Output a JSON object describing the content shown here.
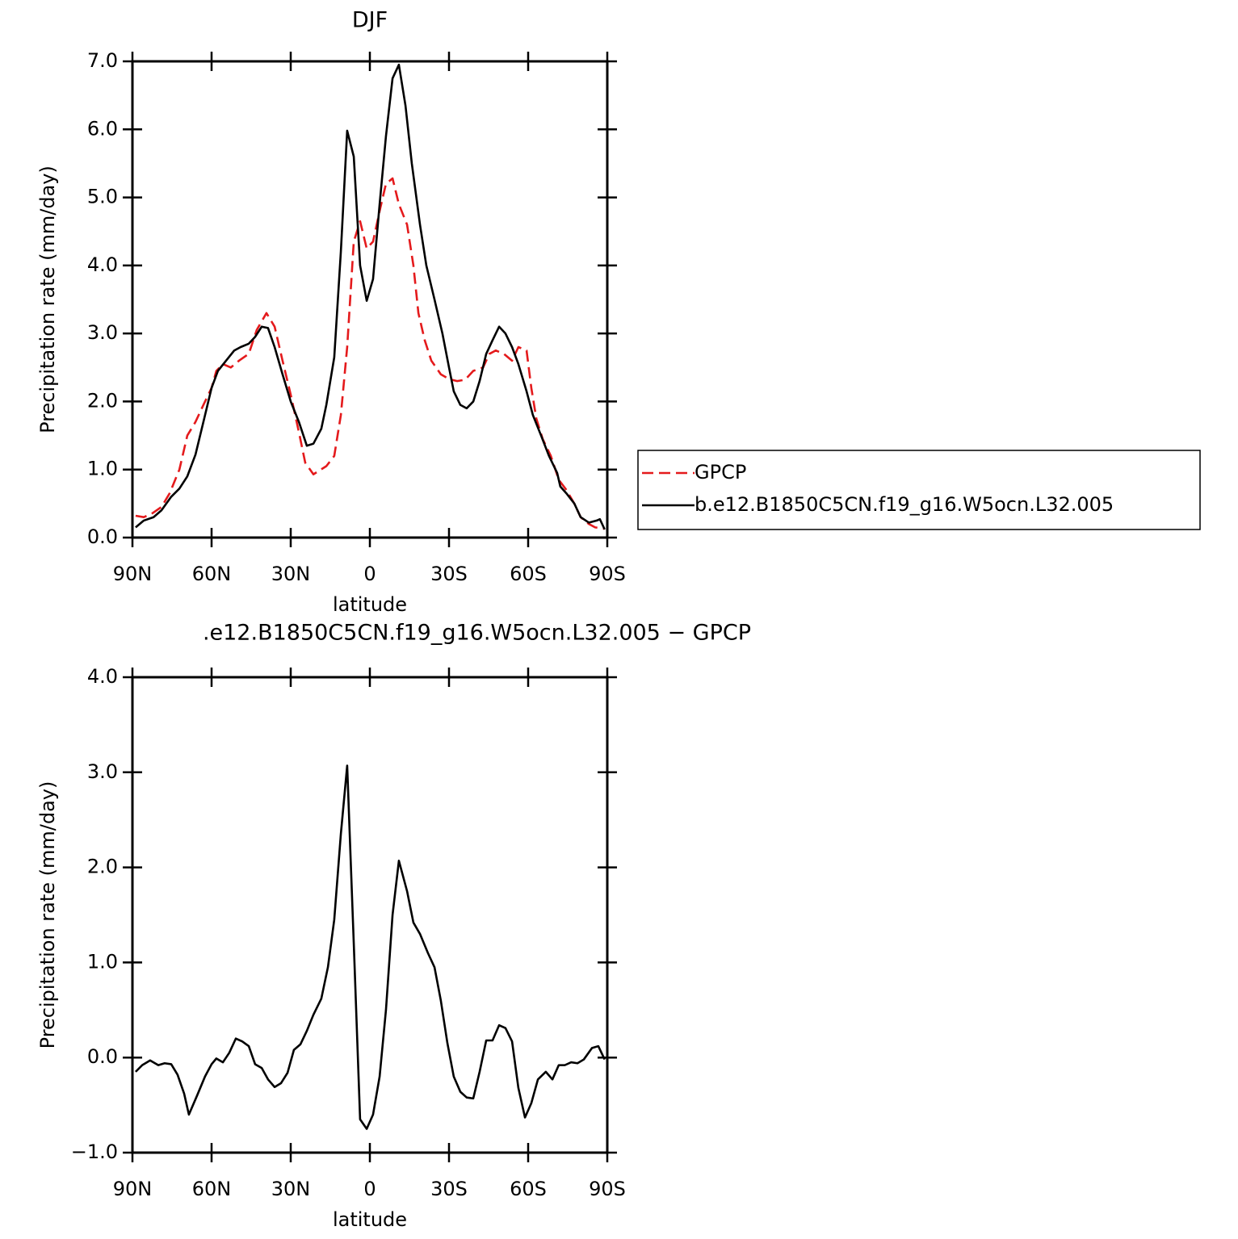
{
  "chart_data": [
    {
      "type": "line",
      "title": "DJF",
      "xlabel": "latitude",
      "ylabel": "Precipitation rate (mm/day)",
      "xlim": [
        90,
        -90
      ],
      "xticks": [
        {
          "value": 90,
          "label": "90N"
        },
        {
          "value": 60,
          "label": "60N"
        },
        {
          "value": 30,
          "label": "30N"
        },
        0,
        {
          "value": -30,
          "label": "30S"
        },
        {
          "value": -60,
          "label": "60S"
        },
        {
          "value": -90,
          "label": "90S"
        }
      ],
      "ylim": [
        0,
        7
      ],
      "yticks": [
        {
          "value": 0,
          "label": "0.0"
        },
        {
          "value": 1,
          "label": "1.0"
        },
        {
          "value": 2,
          "label": "2.0"
        },
        {
          "value": 3,
          "label": "3.0"
        },
        {
          "value": 4,
          "label": "4.0"
        },
        {
          "value": 5,
          "label": "5.0"
        },
        {
          "value": 6,
          "label": "6.0"
        },
        {
          "value": 7,
          "label": "7.0"
        }
      ],
      "legend": "right",
      "series": [
        {
          "name": "GPCP",
          "color": "#e41a1c",
          "dashed": true,
          "x": [
            88.8,
            85.7,
            82.7,
            79.0,
            75.9,
            72.2,
            69.2,
            66.1,
            63.1,
            60.0,
            58.2,
            55.7,
            52.7,
            49.6,
            45.9,
            42.9,
            39.2,
            36.1,
            33.1,
            30.0,
            26.9,
            24.5,
            21.4,
            16.5,
            13.5,
            11.0,
            8.6,
            6.1,
            3.7,
            1.2,
            -1.2,
            -3.7,
            -6.1,
            -8.6,
            -11.0,
            -14.1,
            -16.5,
            -18.4,
            -20.8,
            -23.3,
            -26.9,
            -30.0,
            -33.1,
            -36.1,
            -39.2,
            -42.9,
            -45.3,
            -47.7,
            -50.8,
            -53.9,
            -56.3,
            -59.4,
            -61.2,
            -63.1,
            -65.5,
            -68.6,
            -71.6,
            -74.5,
            -77.5,
            -79.9,
            -83.0,
            -85.4,
            -89.0
          ],
          "values": [
            0.32,
            0.3,
            0.35,
            0.45,
            0.65,
            1.0,
            1.5,
            1.7,
            1.95,
            2.2,
            2.45,
            2.55,
            2.5,
            2.6,
            2.7,
            3.05,
            3.3,
            3.1,
            2.6,
            2.1,
            1.55,
            1.1,
            0.93,
            1.05,
            1.2,
            1.8,
            2.8,
            4.35,
            4.65,
            4.25,
            4.35,
            4.8,
            5.2,
            5.28,
            4.9,
            4.6,
            4.0,
            3.3,
            2.9,
            2.6,
            2.4,
            2.33,
            2.3,
            2.32,
            2.45,
            2.5,
            2.7,
            2.75,
            2.7,
            2.6,
            2.8,
            2.75,
            2.2,
            1.75,
            1.45,
            1.2,
            0.85,
            0.7,
            0.5,
            0.3,
            0.2,
            0.15,
            0.13
          ]
        },
        {
          "name": "b.e12.B1850C5CN.f19_g16.W5ocn.L32.005",
          "color": "#000000",
          "x": [
            88.8,
            85.7,
            82.0,
            79.0,
            75.3,
            72.2,
            69.2,
            66.1,
            63.1,
            60.0,
            57.6,
            54.5,
            51.4,
            49.0,
            45.9,
            43.5,
            41.0,
            38.6,
            36.1,
            33.1,
            30.0,
            26.9,
            23.9,
            21.4,
            18.4,
            16.5,
            13.5,
            11.0,
            8.6,
            6.1,
            3.7,
            1.2,
            -1.2,
            -3.7,
            -6.1,
            -8.6,
            -11.0,
            -13.5,
            -15.9,
            -19.0,
            -21.4,
            -24.5,
            -27.5,
            -30.0,
            -31.8,
            -34.3,
            -36.7,
            -39.2,
            -41.6,
            -44.1,
            -46.5,
            -49.0,
            -51.4,
            -53.9,
            -56.3,
            -59.4,
            -61.8,
            -64.9,
            -67.9,
            -71.0,
            -72.2,
            -74.5,
            -77.5,
            -79.9,
            -83.0,
            -86.0,
            -87.2,
            -89.0
          ],
          "values": [
            0.15,
            0.25,
            0.3,
            0.4,
            0.6,
            0.72,
            0.9,
            1.22,
            1.7,
            2.2,
            2.45,
            2.6,
            2.75,
            2.8,
            2.85,
            2.95,
            3.1,
            3.08,
            2.8,
            2.4,
            2.0,
            1.7,
            1.35,
            1.38,
            1.6,
            1.95,
            2.65,
            4.2,
            5.98,
            5.6,
            4.0,
            3.48,
            3.8,
            4.9,
            5.9,
            6.75,
            6.95,
            6.35,
            5.5,
            4.6,
            4.0,
            3.5,
            3.0,
            2.5,
            2.15,
            1.95,
            1.9,
            2.0,
            2.3,
            2.7,
            2.9,
            3.1,
            3.0,
            2.8,
            2.55,
            2.15,
            1.8,
            1.5,
            1.2,
            0.95,
            0.75,
            0.65,
            0.5,
            0.3,
            0.22,
            0.25,
            0.27,
            0.12
          ]
        }
      ]
    },
    {
      "type": "line",
      "title": ".e12.B1850C5CN.f19_g16.W5ocn.L32.005 − GPCP",
      "xlabel": "latitude",
      "ylabel": "Precipitation rate (mm/day)",
      "xlim": [
        90,
        -90
      ],
      "xticks": [
        {
          "value": 90,
          "label": "90N"
        },
        {
          "value": 60,
          "label": "60N"
        },
        {
          "value": 30,
          "label": "30N"
        },
        0,
        {
          "value": -30,
          "label": "30S"
        },
        {
          "value": -60,
          "label": "60S"
        },
        {
          "value": -90,
          "label": "90S"
        }
      ],
      "ylim": [
        -1,
        4
      ],
      "yticks": [
        {
          "value": -1,
          "label": "−1.0"
        },
        {
          "value": 0,
          "label": "0.0"
        },
        {
          "value": 1,
          "label": "1.0"
        },
        {
          "value": 2,
          "label": "2.0"
        },
        {
          "value": 3,
          "label": "3.0"
        },
        {
          "value": 4,
          "label": "4.0"
        }
      ],
      "series": [
        {
          "color": "#000000",
          "x": [
            88.8,
            86.3,
            83.3,
            80.2,
            77.8,
            75.3,
            72.9,
            70.4,
            68.6,
            65.5,
            62.5,
            60.0,
            58.2,
            55.7,
            53.3,
            50.8,
            48.4,
            45.9,
            43.5,
            41.0,
            38.6,
            36.1,
            33.7,
            31.2,
            28.8,
            26.3,
            23.9,
            21.4,
            18.4,
            15.9,
            13.5,
            11.0,
            8.6,
            6.1,
            3.7,
            1.2,
            -1.2,
            -3.7,
            -6.1,
            -8.6,
            -11.0,
            -14.1,
            -16.5,
            -19.0,
            -22.0,
            -24.5,
            -26.9,
            -29.4,
            -31.8,
            -34.3,
            -36.7,
            -39.2,
            -41.6,
            -44.1,
            -46.5,
            -49.0,
            -51.4,
            -53.9,
            -56.3,
            -58.8,
            -61.2,
            -63.7,
            -66.7,
            -69.2,
            -71.6,
            -73.9,
            -76.3,
            -78.7,
            -81.1,
            -84.2,
            -86.6,
            -89.0
          ],
          "values": [
            -0.15,
            -0.08,
            -0.03,
            -0.08,
            -0.06,
            -0.07,
            -0.18,
            -0.38,
            -0.6,
            -0.4,
            -0.2,
            -0.07,
            -0.01,
            -0.05,
            0.05,
            0.2,
            0.17,
            0.12,
            -0.07,
            -0.11,
            -0.23,
            -0.31,
            -0.27,
            -0.16,
            0.08,
            0.14,
            0.28,
            0.45,
            0.62,
            0.95,
            1.45,
            2.35,
            3.07,
            1.2,
            -0.65,
            -0.75,
            -0.6,
            -0.2,
            0.5,
            1.5,
            2.07,
            1.75,
            1.42,
            1.3,
            1.1,
            0.95,
            0.6,
            0.15,
            -0.2,
            -0.36,
            -0.42,
            -0.43,
            -0.15,
            0.18,
            0.18,
            0.34,
            0.31,
            0.17,
            -0.32,
            -0.63,
            -0.48,
            -0.23,
            -0.15,
            -0.23,
            -0.08,
            -0.08,
            -0.05,
            -0.06,
            -0.02,
            0.1,
            0.12,
            -0.02
          ]
        }
      ]
    }
  ]
}
